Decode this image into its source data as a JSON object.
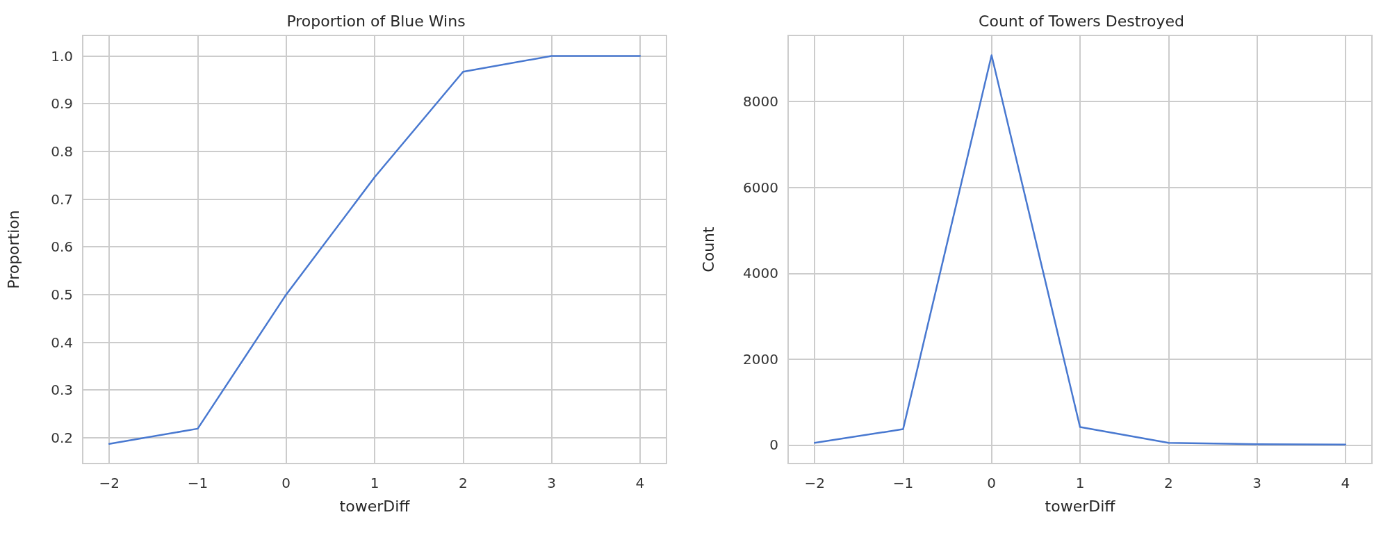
{
  "chart_data": [
    {
      "type": "line",
      "title": "Proportion of Blue Wins",
      "xlabel": "towerDiff",
      "ylabel": "Proportion",
      "x": [
        -2,
        -1,
        0,
        1,
        2,
        3,
        4
      ],
      "series": [
        {
          "color": "#4878d0",
          "values": [
            0.187,
            0.219,
            0.5,
            0.746,
            0.967,
            1.0,
            1.0
          ]
        }
      ],
      "xlim": [
        -2.3,
        4.3
      ],
      "xticks": [
        -2,
        -1,
        0,
        1,
        2,
        3,
        4
      ],
      "ylim": [
        0.146,
        1.043
      ],
      "yticks": [
        0.2,
        0.3,
        0.4,
        0.5,
        0.6,
        0.7,
        0.8,
        0.9,
        {
          "value": 1.0,
          "label": "1.0"
        }
      ],
      "grid": true,
      "marker": "none",
      "line_style": "solid"
    },
    {
      "type": "line",
      "title": "Count of Towers Destroyed",
      "xlabel": "towerDiff",
      "ylabel": "Count",
      "x": [
        -2,
        -1,
        0,
        1,
        2,
        3,
        4
      ],
      "series": [
        {
          "color": "#4878d0",
          "values": [
            50,
            370,
            9080,
            420,
            50,
            20,
            10
          ]
        }
      ],
      "xlim": [
        -2.3,
        4.3
      ],
      "xticks": [
        -2,
        -1,
        0,
        1,
        2,
        3,
        4
      ],
      "ylim": [
        -430,
        9540
      ],
      "yticks": [
        0,
        2000,
        4000,
        6000,
        8000
      ],
      "grid": true,
      "marker": "none",
      "line_style": "solid"
    }
  ]
}
